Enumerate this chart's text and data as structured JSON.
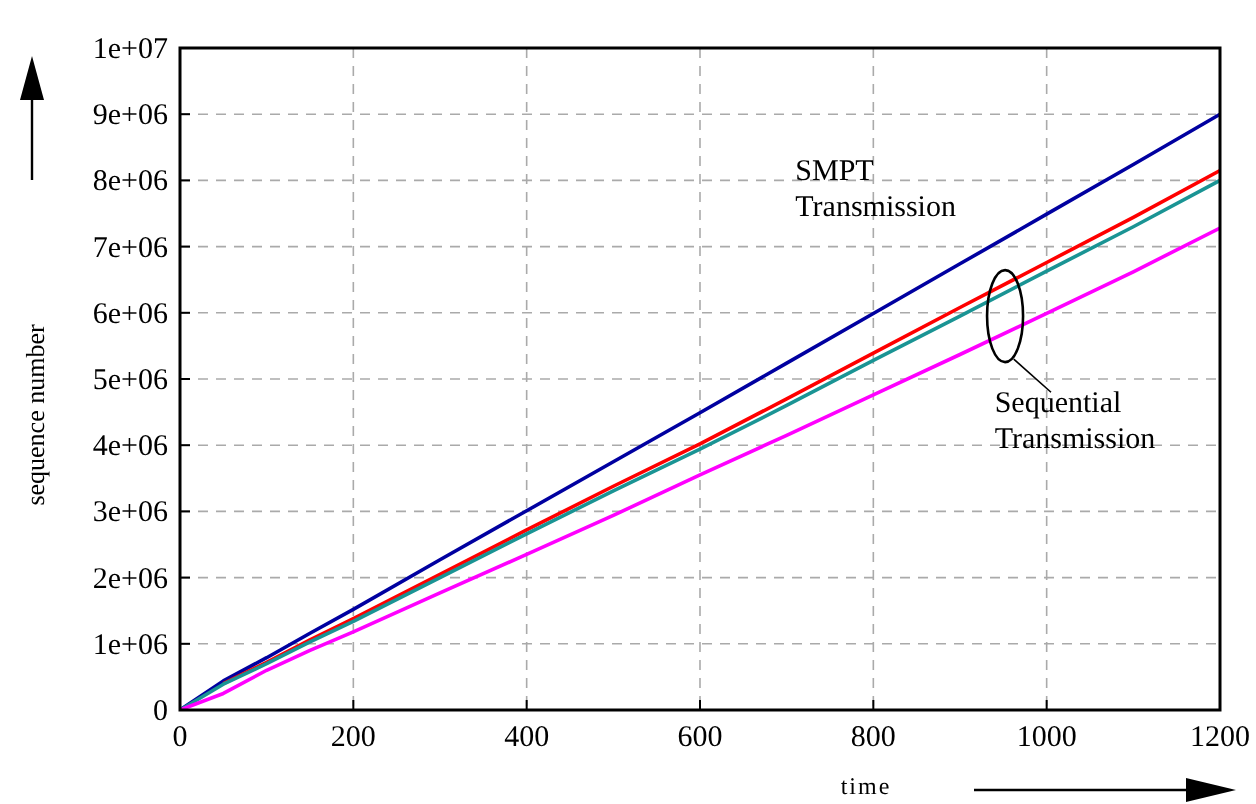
{
  "chart_data": {
    "type": "line",
    "xlabel": "time",
    "ylabel": "sequence number",
    "x": [
      0,
      50,
      100,
      150,
      200,
      300,
      400,
      500,
      600,
      700,
      800,
      900,
      1000,
      1100,
      1200
    ],
    "series": [
      {
        "color": "#0000a0",
        "values": [
          0,
          440000,
          790000,
          1160000,
          1520000,
          2270000,
          3010000,
          3750000,
          4490000,
          5240000,
          5990000,
          6740000,
          7490000,
          8240000,
          9000000
        ]
      },
      {
        "color": "#ff0000",
        "values": [
          null,
          400000,
          720000,
          1060000,
          1380000,
          2050000,
          2720000,
          3380000,
          4020000,
          4700000,
          5390000,
          6080000,
          6760000,
          7440000,
          8150000
        ]
      },
      {
        "color": "#1a9494",
        "values": [
          0,
          390000,
          700000,
          1030000,
          1340000,
          2000000,
          2660000,
          3310000,
          3940000,
          4600000,
          5280000,
          5950000,
          6630000,
          7300000,
          8000000
        ]
      },
      {
        "color": "#ff00ff",
        "values": [
          0,
          250000,
          600000,
          900000,
          1180000,
          1770000,
          2350000,
          2940000,
          3550000,
          4150000,
          4760000,
          5370000,
          5990000,
          6620000,
          7280000
        ]
      }
    ],
    "xlim": [
      0,
      1200
    ],
    "ylim": [
      0,
      10000000
    ],
    "xticks": [
      0,
      200,
      400,
      600,
      800,
      1000,
      1200
    ],
    "yticks": [
      0,
      {
        "value": 1000000,
        "label": "1e+06"
      },
      {
        "value": 2000000,
        "label": "2e+06"
      },
      {
        "value": 3000000,
        "label": "3e+06"
      },
      {
        "value": 4000000,
        "label": "4e+06"
      },
      {
        "value": 5000000,
        "label": "5e+06"
      },
      {
        "value": 6000000,
        "label": "6e+06"
      },
      {
        "value": 7000000,
        "label": "7e+06"
      },
      {
        "value": 8000000,
        "label": "8e+06"
      },
      {
        "value": 9000000,
        "label": "9e+06"
      },
      {
        "value": 10000000,
        "label": "1e+07"
      }
    ],
    "grid": true,
    "marker": "none",
    "line_style": "solid",
    "annotations": [
      "SMPT Transmission",
      "Sequential Transmission"
    ]
  }
}
